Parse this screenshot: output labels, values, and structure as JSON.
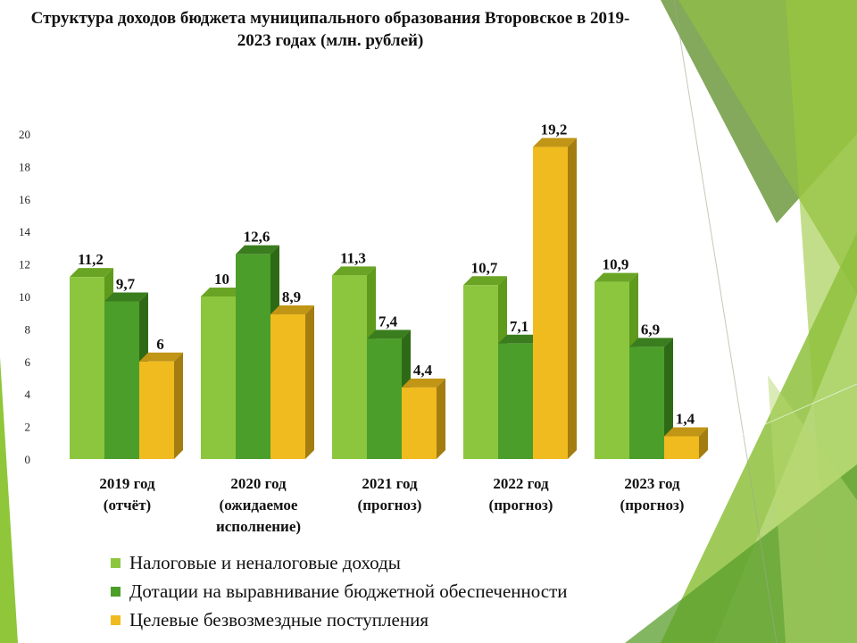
{
  "chart_data": {
    "type": "bar",
    "title": "Структура доходов бюджета муниципального образования Второвское в 2019-2023 годах (млн. рублей)",
    "categories": [
      [
        "2019 год",
        "(отчёт)"
      ],
      [
        "2020 год",
        "(ожидаемое",
        "исполнение)"
      ],
      [
        "2021 год",
        "(прогноз)"
      ],
      [
        "2022 год",
        "(прогноз)"
      ],
      [
        "2023 год",
        "(прогноз)"
      ]
    ],
    "series": [
      {
        "name": "Налоговые и неналоговые доходы",
        "values": [
          11.2,
          10,
          11.3,
          10.7,
          10.9
        ],
        "labels": [
          "11,2",
          "10",
          "11,3",
          "10,7",
          "10,9"
        ],
        "color": "#8cc63f",
        "side": "#5e9a1c",
        "top": "#6aa424"
      },
      {
        "name": "Дотации на выравнивание бюджетной обеспеченности",
        "values": [
          9.7,
          12.6,
          7.4,
          7.1,
          6.9
        ],
        "labels": [
          "9,7",
          "12,6",
          "7,4",
          "7,1",
          "6,9"
        ],
        "color": "#4c9e2a",
        "side": "#2e6a16",
        "top": "#3a7d1f"
      },
      {
        "name": "Целевые безвозмездные поступления",
        "values": [
          6,
          8.9,
          4.4,
          19.2,
          1.4
        ],
        "labels": [
          "6",
          "8,9",
          "4,4",
          "19,2",
          "1,4"
        ],
        "color": "#f0bb1f",
        "side": "#a47d10",
        "top": "#c19515"
      }
    ],
    "ylim": [
      0,
      20
    ],
    "yticks": [
      "0",
      "2",
      "4",
      "6",
      "8",
      "10",
      "12",
      "14",
      "16",
      "18",
      "20"
    ],
    "grid": false,
    "legend_position": "bottom"
  }
}
